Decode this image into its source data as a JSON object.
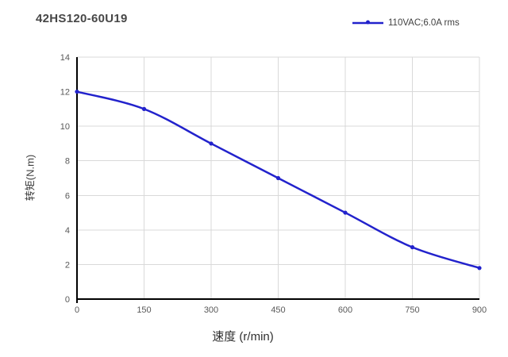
{
  "chart_data": {
    "type": "line",
    "title": "42HS120-60U19",
    "xlabel": "速度 (r/min)",
    "ylabel": "转矩(N.m)",
    "x": [
      0,
      150,
      300,
      450,
      600,
      750,
      900
    ],
    "series": [
      {
        "name": "110VAC;6.0A rms",
        "values": [
          12,
          11,
          9,
          7,
          5,
          3,
          1.8
        ],
        "color": "#2222CC",
        "marker": "dot",
        "smooth": true
      }
    ],
    "xlim": [
      0,
      900
    ],
    "ylim": [
      0,
      14
    ],
    "x_ticks": [
      0,
      150,
      300,
      450,
      600,
      750,
      900
    ],
    "y_ticks": [
      0,
      2,
      4,
      6,
      8,
      10,
      12,
      14
    ],
    "grid": true,
    "legend_position": "top-right"
  },
  "colors": {
    "series_blue": "#2222CC",
    "gridline": "#D9D9D9",
    "axis": "#000000",
    "tick_label": "#595959",
    "title_text": "#474747"
  }
}
